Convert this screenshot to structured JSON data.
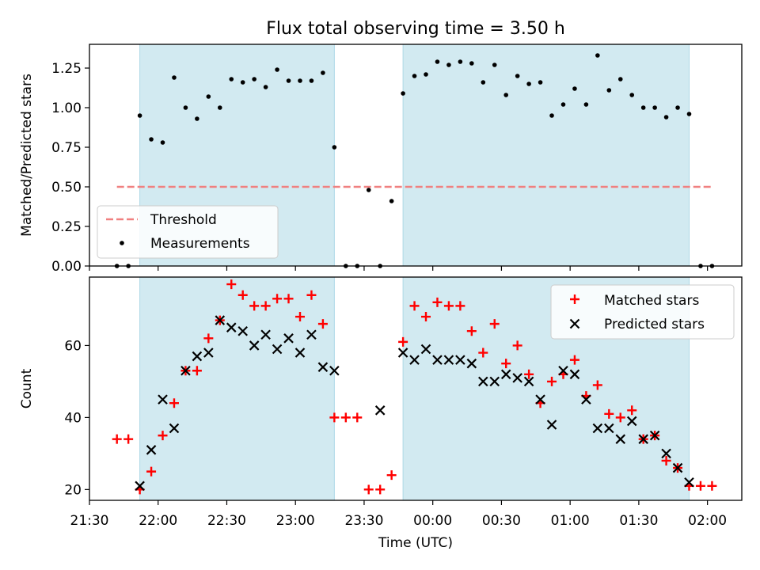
{
  "figure_title": "Flux total observing time = 3.50 h",
  "colors": {
    "shade": "#add8e6",
    "threshold": "#f08080",
    "measurement": "#000000",
    "matched": "#ff0000",
    "predicted": "#000000"
  },
  "chart_data": [
    {
      "type": "scatter",
      "ylabel": "Matched/Predicted stars",
      "ylim": [
        0,
        1.4
      ],
      "yticks": [
        "0.00",
        "0.25",
        "0.50",
        "0.75",
        "1.00",
        "1.25"
      ],
      "shaded_intervals": [
        [
          "21:52",
          "23:17"
        ],
        [
          "23:47",
          "01:52"
        ]
      ],
      "legend_position": "lower-left",
      "threshold": {
        "name": "Threshold",
        "value": 0.5,
        "x_range": [
          "21:42",
          "02:02"
        ]
      },
      "series": [
        {
          "name": "Measurements",
          "points": [
            [
              "21:42",
              0.0
            ],
            [
              "21:47",
              0.0
            ],
            [
              "21:52",
              0.95
            ],
            [
              "21:57",
              0.8
            ],
            [
              "22:02",
              0.78
            ],
            [
              "22:07",
              1.19
            ],
            [
              "22:12",
              1.0
            ],
            [
              "22:17",
              0.93
            ],
            [
              "22:22",
              1.07
            ],
            [
              "22:27",
              1.0
            ],
            [
              "22:32",
              1.18
            ],
            [
              "22:37",
              1.16
            ],
            [
              "22:42",
              1.18
            ],
            [
              "22:47",
              1.13
            ],
            [
              "22:52",
              1.24
            ],
            [
              "22:57",
              1.17
            ],
            [
              "23:02",
              1.17
            ],
            [
              "23:07",
              1.17
            ],
            [
              "23:12",
              1.22
            ],
            [
              "23:17",
              0.75
            ],
            [
              "23:22",
              0.0
            ],
            [
              "23:27",
              0.0
            ],
            [
              "23:32",
              0.48
            ],
            [
              "23:37",
              0.0
            ],
            [
              "23:42",
              0.41
            ],
            [
              "23:47",
              1.09
            ],
            [
              "23:52",
              1.2
            ],
            [
              "23:57",
              1.21
            ],
            [
              "00:02",
              1.29
            ],
            [
              "00:07",
              1.27
            ],
            [
              "00:12",
              1.29
            ],
            [
              "00:17",
              1.28
            ],
            [
              "00:22",
              1.16
            ],
            [
              "00:27",
              1.27
            ],
            [
              "00:32",
              1.08
            ],
            [
              "00:37",
              1.2
            ],
            [
              "00:42",
              1.15
            ],
            [
              "00:47",
              1.16
            ],
            [
              "00:52",
              0.95
            ],
            [
              "00:57",
              1.02
            ],
            [
              "01:02",
              1.12
            ],
            [
              "01:07",
              1.02
            ],
            [
              "01:12",
              1.33
            ],
            [
              "01:17",
              1.11
            ],
            [
              "01:22",
              1.18
            ],
            [
              "01:27",
              1.08
            ],
            [
              "01:32",
              1.0
            ],
            [
              "01:37",
              1.0
            ],
            [
              "01:42",
              0.94
            ],
            [
              "01:47",
              1.0
            ],
            [
              "01:52",
              0.96
            ],
            [
              "01:57",
              0.0
            ],
            [
              "02:02",
              0.0
            ]
          ]
        }
      ]
    },
    {
      "type": "scatter",
      "ylabel": "Count",
      "xlabel": "Time (UTC)",
      "ylim": [
        17,
        79
      ],
      "yticks": [
        "20",
        "40",
        "60"
      ],
      "xticks": [
        "21:30",
        "22:00",
        "22:30",
        "23:00",
        "23:30",
        "00:00",
        "00:30",
        "01:00",
        "01:30",
        "02:00"
      ],
      "x_range": [
        "21:30",
        "02:15"
      ],
      "shaded_intervals": [
        [
          "21:52",
          "23:17"
        ],
        [
          "23:47",
          "01:52"
        ]
      ],
      "legend_position": "upper-right",
      "series": [
        {
          "name": "Matched stars",
          "marker": "plus",
          "points": [
            [
              "21:42",
              34
            ],
            [
              "21:47",
              34
            ],
            [
              "21:52",
              20
            ],
            [
              "21:57",
              25
            ],
            [
              "22:02",
              35
            ],
            [
              "22:07",
              44
            ],
            [
              "22:12",
              53
            ],
            [
              "22:17",
              53
            ],
            [
              "22:22",
              62
            ],
            [
              "22:27",
              67
            ],
            [
              "22:32",
              77
            ],
            [
              "22:37",
              74
            ],
            [
              "22:42",
              71
            ],
            [
              "22:47",
              71
            ],
            [
              "22:52",
              73
            ],
            [
              "22:57",
              73
            ],
            [
              "23:02",
              68
            ],
            [
              "23:07",
              74
            ],
            [
              "23:12",
              66
            ],
            [
              "23:17",
              40
            ],
            [
              "23:22",
              40
            ],
            [
              "23:27",
              40
            ],
            [
              "23:32",
              20
            ],
            [
              "23:37",
              20
            ],
            [
              "23:42",
              24
            ],
            [
              "23:47",
              61
            ],
            [
              "23:52",
              71
            ],
            [
              "23:57",
              68
            ],
            [
              "00:02",
              72
            ],
            [
              "00:07",
              71
            ],
            [
              "00:12",
              71
            ],
            [
              "00:17",
              64
            ],
            [
              "00:22",
              58
            ],
            [
              "00:27",
              66
            ],
            [
              "00:32",
              55
            ],
            [
              "00:37",
              60
            ],
            [
              "00:42",
              52
            ],
            [
              "00:47",
              44
            ],
            [
              "00:52",
              50
            ],
            [
              "00:57",
              52
            ],
            [
              "01:02",
              56
            ],
            [
              "01:07",
              46
            ],
            [
              "01:12",
              49
            ],
            [
              "01:17",
              41
            ],
            [
              "01:22",
              40
            ],
            [
              "01:27",
              42
            ],
            [
              "01:32",
              34
            ],
            [
              "01:37",
              35
            ],
            [
              "01:42",
              28
            ],
            [
              "01:47",
              26
            ],
            [
              "01:52",
              21
            ],
            [
              "01:57",
              21
            ],
            [
              "02:02",
              21
            ]
          ]
        },
        {
          "name": "Predicted stars",
          "marker": "x",
          "points": [
            [
              "21:52",
              21
            ],
            [
              "21:57",
              31
            ],
            [
              "22:02",
              45
            ],
            [
              "22:07",
              37
            ],
            [
              "22:12",
              53
            ],
            [
              "22:17",
              57
            ],
            [
              "22:22",
              58
            ],
            [
              "22:27",
              67
            ],
            [
              "22:32",
              65
            ],
            [
              "22:37",
              64
            ],
            [
              "22:42",
              60
            ],
            [
              "22:47",
              63
            ],
            [
              "22:52",
              59
            ],
            [
              "22:57",
              62
            ],
            [
              "23:02",
              58
            ],
            [
              "23:07",
              63
            ],
            [
              "23:12",
              54
            ],
            [
              "23:17",
              53
            ],
            [
              "23:37",
              42
            ],
            [
              "23:47",
              58
            ],
            [
              "23:52",
              56
            ],
            [
              "23:57",
              59
            ],
            [
              "00:02",
              56
            ],
            [
              "00:07",
              56
            ],
            [
              "00:12",
              56
            ],
            [
              "00:17",
              55
            ],
            [
              "00:22",
              50
            ],
            [
              "00:27",
              50
            ],
            [
              "00:32",
              52
            ],
            [
              "00:37",
              51
            ],
            [
              "00:42",
              50
            ],
            [
              "00:47",
              45
            ],
            [
              "00:52",
              38
            ],
            [
              "00:57",
              53
            ],
            [
              "01:02",
              52
            ],
            [
              "01:07",
              45
            ],
            [
              "01:12",
              37
            ],
            [
              "01:17",
              37
            ],
            [
              "01:22",
              34
            ],
            [
              "01:27",
              39
            ],
            [
              "01:32",
              34
            ],
            [
              "01:37",
              35
            ],
            [
              "01:42",
              30
            ],
            [
              "01:47",
              26
            ],
            [
              "01:52",
              22
            ]
          ]
        }
      ]
    }
  ]
}
